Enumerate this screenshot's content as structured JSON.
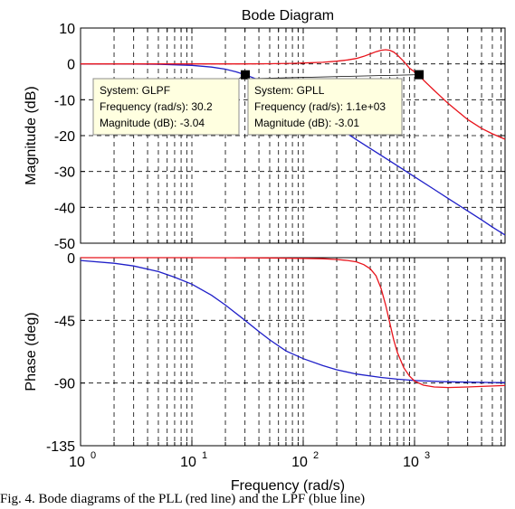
{
  "title": "Bode Diagram",
  "caption": "Fig. 4. Bode diagrams of the PLL (red line) and the LPF (blue line)",
  "colors": {
    "GPLL": "#e8141c",
    "GLPF": "#1f1fc8",
    "grid": "#000000",
    "axis": "#000000",
    "tooltip_bg": "#ffffe0"
  },
  "chart_data": [
    {
      "type": "line",
      "title": "Bode Diagram",
      "xlabel": "",
      "ylabel": "Magnitude (dB)",
      "xscale": "log",
      "xlim": [
        1,
        6500
      ],
      "ylim": [
        -50,
        10
      ],
      "grid": true,
      "x_ticks": [
        1,
        10,
        100,
        1000
      ],
      "y_ticks": [
        10,
        0,
        -10,
        -20,
        -30,
        -40,
        -50
      ],
      "y_tick_labels": [
        "10",
        "0",
        "-10",
        "-20",
        "-30",
        "-40",
        "-50"
      ],
      "series": [
        {
          "name": "GLPF",
          "color": "#1f1fc8",
          "x": [
            1,
            2,
            3,
            5,
            10,
            15,
            20,
            25,
            30.2,
            40,
            50,
            70,
            100,
            150,
            200,
            300,
            500,
            700,
            1000,
            1500,
            2000,
            3000,
            4000,
            5000,
            6500
          ],
          "y": [
            0,
            -0.02,
            -0.04,
            -0.12,
            -0.42,
            -0.9,
            -1.48,
            -2.23,
            -3.04,
            -4.5,
            -5.9,
            -8.5,
            -11.5,
            -15.0,
            -17.5,
            -21.1,
            -25.5,
            -28.4,
            -31.5,
            -35.0,
            -37.5,
            -41.0,
            -43.5,
            -45.5,
            -47.7
          ]
        },
        {
          "name": "GPLL",
          "color": "#e8141c",
          "x": [
            1,
            10,
            30,
            50,
            80,
            100,
            150,
            200,
            250,
            300,
            350,
            400,
            450,
            500,
            550,
            600,
            650,
            700,
            800,
            900,
            1000,
            1100,
            1200,
            1500,
            2000,
            2500,
            3000,
            4000,
            5000,
            6500
          ],
          "y": [
            0,
            0,
            0,
            0.05,
            0.15,
            0.25,
            0.45,
            0.75,
            1.1,
            1.5,
            2.1,
            2.8,
            3.4,
            3.8,
            3.95,
            3.8,
            3.3,
            2.5,
            0.7,
            -1.2,
            -2.2,
            -3.01,
            -4.5,
            -7.4,
            -11.0,
            -13.5,
            -15.5,
            -18.0,
            -19.5,
            -21.0
          ]
        }
      ],
      "datatips": [
        {
          "series": "GLPF",
          "x": 30.2,
          "y": -3.04,
          "lines": [
            "System: GLPF",
            "Frequency (rad/s): 30.2",
            "Magnitude (dB): -3.04"
          ]
        },
        {
          "series": "GPLL",
          "x": 1100,
          "y": -3.01,
          "lines": [
            "System: GPLL",
            "Frequency (rad/s): 1.1e+03",
            "Magnitude (dB): -3.01"
          ]
        }
      ]
    },
    {
      "type": "line",
      "title": "",
      "xlabel": "Frequency (rad/s)",
      "ylabel": "Phase (deg)",
      "xscale": "log",
      "xlim": [
        1,
        6500
      ],
      "ylim": [
        -135,
        0
      ],
      "grid": true,
      "x_ticks": [
        1,
        10,
        100,
        1000
      ],
      "x_tick_labels": [
        {
          "base": "10",
          "exp": "0"
        },
        {
          "base": "10",
          "exp": "1"
        },
        {
          "base": "10",
          "exp": "2"
        },
        {
          "base": "10",
          "exp": "3"
        }
      ],
      "y_ticks": [
        0,
        -45,
        -90,
        -135
      ],
      "y_tick_labels": [
        "0",
        "-45",
        "-90",
        "-135"
      ],
      "series": [
        {
          "name": "GLPF",
          "color": "#1f1fc8",
          "x": [
            1,
            2,
            3,
            5,
            7,
            10,
            15,
            20,
            30,
            40,
            50,
            70,
            100,
            150,
            200,
            300,
            500,
            700,
            1000,
            2000,
            3000,
            5000,
            6500
          ],
          "y": [
            -2,
            -4,
            -6,
            -10,
            -14,
            -19,
            -27,
            -34,
            -45,
            -53,
            -59,
            -67,
            -72.5,
            -77.5,
            -80.5,
            -83.5,
            -86,
            -87.2,
            -88.2,
            -89.1,
            -89.4,
            -89.6,
            -89.7
          ]
        },
        {
          "name": "GPLL",
          "color": "#e8141c",
          "x": [
            1,
            10,
            50,
            100,
            150,
            200,
            250,
            300,
            350,
            400,
            450,
            500,
            550,
            600,
            650,
            700,
            800,
            900,
            1000,
            1200,
            1500,
            2000,
            3000,
            4000,
            6500
          ],
          "y": [
            0,
            0,
            -0.2,
            -0.5,
            -0.8,
            -1.3,
            -2,
            -3,
            -5,
            -8,
            -13,
            -22,
            -34,
            -47,
            -59,
            -68,
            -79,
            -85,
            -88.5,
            -91.5,
            -92.8,
            -93.2,
            -92.8,
            -92.4,
            -91.8
          ]
        }
      ]
    }
  ]
}
